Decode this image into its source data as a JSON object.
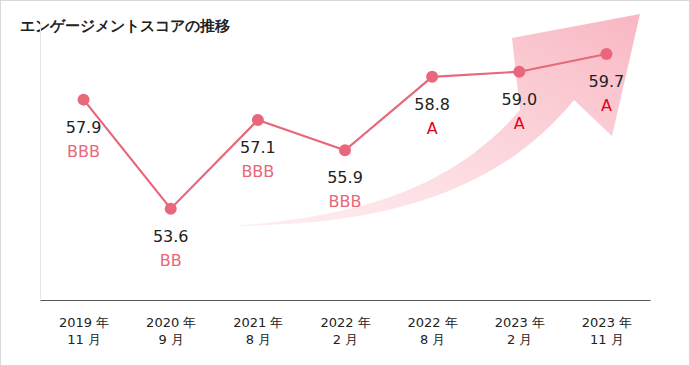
{
  "chart_data": {
    "type": "line",
    "title": "エンゲージメントスコアの推移",
    "categories": [
      "2019 年\n11 月",
      "2020 年\n9 月",
      "2021 年\n8 月",
      "2022 年\n2 月",
      "2022 年\n8 月",
      "2023 年\n2 月",
      "2023 年\n11 月"
    ],
    "values": [
      57.9,
      53.6,
      57.1,
      55.9,
      58.8,
      59.0,
      59.7
    ],
    "value_labels": [
      "57.9",
      "53.6",
      "57.1",
      "55.9",
      "58.8",
      "59.0",
      "59.7"
    ],
    "annotations": [
      "BBB",
      "BB",
      "BBB",
      "BBB",
      "A",
      "A",
      "A"
    ],
    "color": "#e8677b",
    "ylim": [
      50,
      61
    ],
    "tick_labels": "x",
    "data_labels": true,
    "marker": "circle",
    "grid": false
  }
}
